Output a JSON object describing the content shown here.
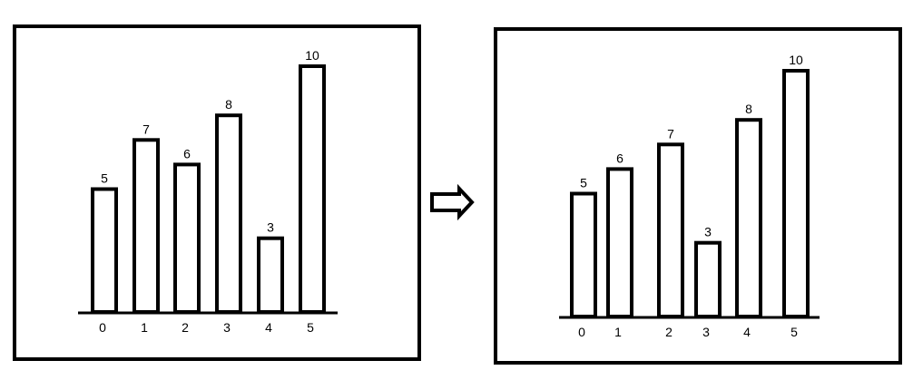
{
  "chart_data": [
    {
      "type": "bar",
      "categories": [
        "0",
        "1",
        "2",
        "3",
        "4",
        "5"
      ],
      "values": [
        5,
        7,
        6,
        8,
        3,
        10
      ]
    },
    {
      "type": "bar",
      "categories": [
        "0",
        "1",
        "2",
        "3",
        "4",
        "5"
      ],
      "values": [
        5,
        6,
        7,
        3,
        8,
        10
      ]
    }
  ],
  "arrow": {
    "icon": "right-arrow-icon"
  }
}
